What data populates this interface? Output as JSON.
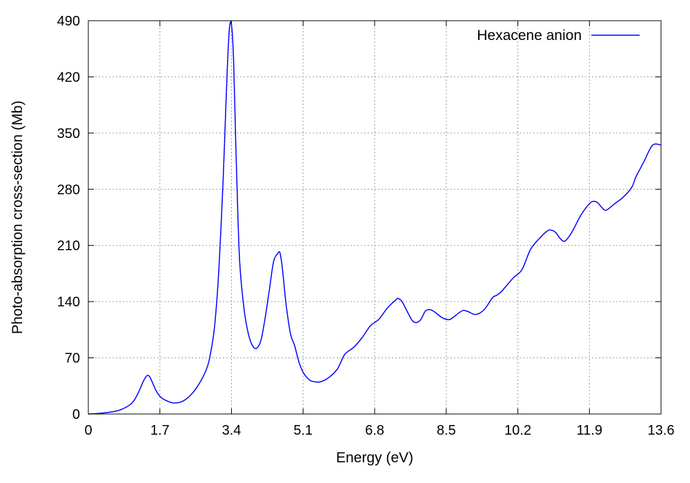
{
  "chart_data": {
    "type": "line",
    "title": "",
    "xlabel": "Energy (eV)",
    "ylabel": "Photo-absorption cross-section (Mb)",
    "xlim": [
      0,
      13.6
    ],
    "ylim": [
      0,
      490
    ],
    "xticks": [
      "0",
      "1.7",
      "3.4",
      "5.1",
      "6.8",
      "8.5",
      "10.2",
      "11.9",
      "13.6"
    ],
    "yticks": [
      "0",
      "70",
      "140",
      "210",
      "280",
      "350",
      "420",
      "490"
    ],
    "grid": true,
    "legend_position": "top-right",
    "series": [
      {
        "name": "Hexacene anion",
        "color": "#0000ff",
        "x": [
          0.0,
          0.3,
          0.6,
          0.8,
          1.0,
          1.1,
          1.2,
          1.3,
          1.35,
          1.4,
          1.45,
          1.5,
          1.6,
          1.7,
          1.8,
          2.0,
          2.2,
          2.4,
          2.6,
          2.8,
          2.9,
          3.0,
          3.1,
          3.2,
          3.25,
          3.3,
          3.35,
          3.4,
          3.45,
          3.5,
          3.55,
          3.6,
          3.7,
          3.8,
          3.9,
          4.0,
          4.1,
          4.2,
          4.3,
          4.4,
          4.5,
          4.55,
          4.6,
          4.65,
          4.7,
          4.8,
          4.9,
          5.0,
          5.1,
          5.2,
          5.3,
          5.5,
          5.7,
          5.9,
          6.0,
          6.1,
          6.3,
          6.5,
          6.7,
          6.9,
          7.1,
          7.3,
          7.35,
          7.45,
          7.6,
          7.7,
          7.8,
          7.9,
          8.0,
          8.1,
          8.2,
          8.4,
          8.5,
          8.6,
          8.8,
          8.9,
          9.0,
          9.2,
          9.4,
          9.6,
          9.7,
          9.8,
          9.9,
          10.1,
          10.3,
          10.5,
          10.7,
          10.9,
          11.0,
          11.1,
          11.2,
          11.3,
          11.4,
          11.5,
          11.7,
          11.9,
          12.0,
          12.1,
          12.2,
          12.3,
          12.5,
          12.7,
          12.9,
          13.0,
          13.1,
          13.2,
          13.4,
          13.6
        ],
        "y": [
          0,
          1,
          3,
          6,
          12,
          18,
          28,
          40,
          45,
          48,
          47,
          42,
          30,
          22,
          18,
          14,
          15,
          22,
          35,
          55,
          75,
          110,
          180,
          290,
          360,
          430,
          480,
          485,
          440,
          340,
          250,
          185,
          130,
          100,
          85,
          82,
          92,
          120,
          155,
          190,
          200,
          201,
          185,
          160,
          135,
          100,
          85,
          65,
          52,
          45,
          41,
          40,
          45,
          55,
          65,
          75,
          83,
          95,
          110,
          118,
          132,
          142,
          144,
          140,
          125,
          116,
          114,
          118,
          128,
          130,
          128,
          120,
          118,
          118,
          126,
          129,
          128,
          124,
          130,
          145,
          148,
          152,
          158,
          170,
          180,
          205,
          218,
          228,
          229,
          226,
          219,
          215,
          220,
          228,
          248,
          262,
          265,
          263,
          257,
          254,
          262,
          270,
          282,
          295,
          305,
          315,
          335,
          335
        ]
      }
    ]
  }
}
